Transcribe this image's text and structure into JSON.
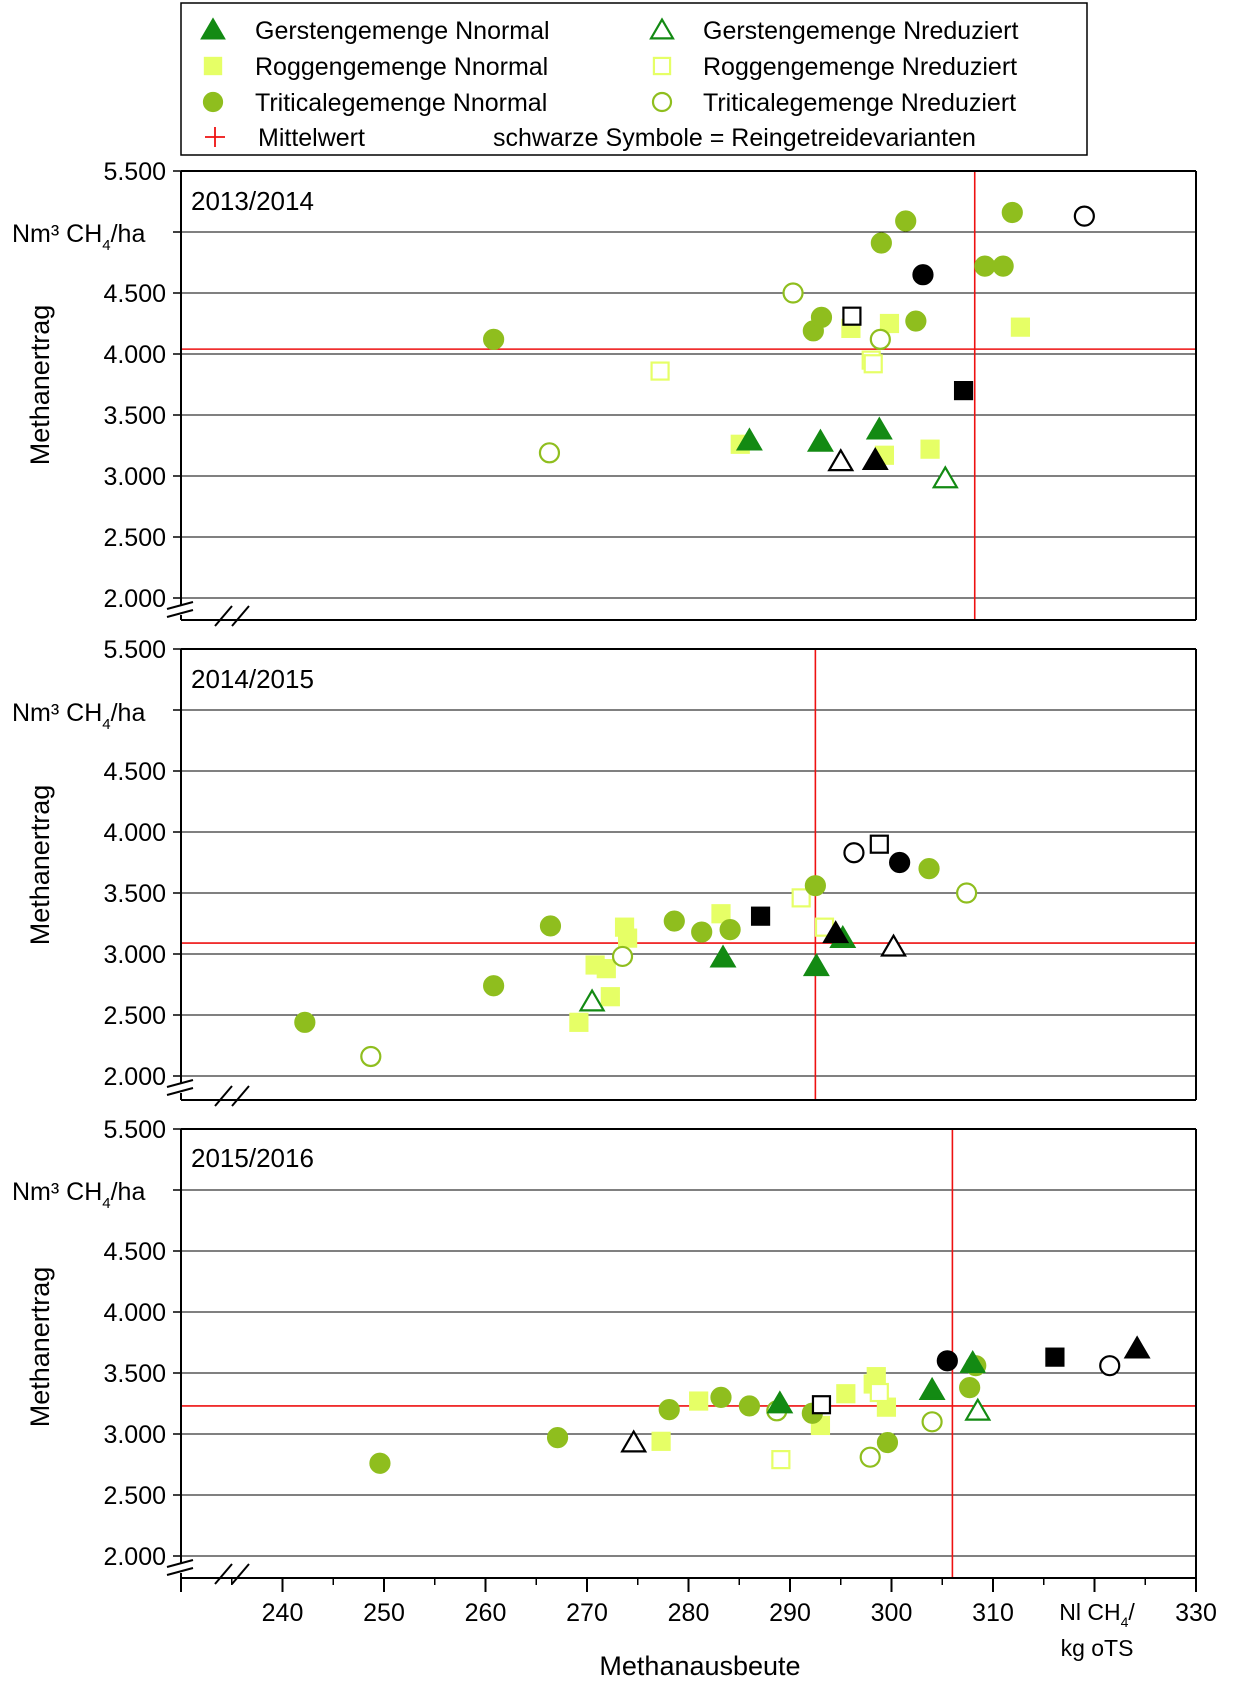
{
  "chart_data": {
    "type": "scatter",
    "xlabel": "Methanausbeute",
    "xunit": [
      "Nl CH",
      "4",
      "/",
      "kg oTS"
    ],
    "ylabel": "Methanertrag",
    "yunit": [
      "Nm³ CH",
      "4",
      "/ha"
    ],
    "xlim": [
      230,
      330
    ],
    "xticks": [
      240,
      250,
      260,
      270,
      280,
      290,
      300,
      310,
      330
    ],
    "xticklabels": [
      "240",
      "250",
      "260",
      "270",
      "280",
      "290",
      "300",
      "310",
      "330"
    ],
    "ylim": [
      2000,
      5500
    ],
    "yticks": [
      "2.000",
      "2.500",
      "3.000",
      "3.500",
      "4.000",
      "4.500",
      "",
      "5.500"
    ],
    "grid": true,
    "axis_break": true,
    "legend": {
      "position": "top",
      "entries": [
        {
          "key": "gn",
          "label": "Gerstengemenge Nnormal"
        },
        {
          "key": "gr",
          "label": "Gerstengemenge Nreduziert"
        },
        {
          "key": "rn",
          "label": "Roggengemenge Nnormal"
        },
        {
          "key": "rr",
          "label": "Roggengemenge Nreduziert"
        },
        {
          "key": "tn",
          "label": "Triticalegemenge Nnormal"
        },
        {
          "key": "tr",
          "label": "Triticalegemenge Nreduziert"
        },
        {
          "key": "mean",
          "label": "Mittelwert"
        }
      ],
      "note": "schwarze Symbole = Reingetreidevarianten"
    },
    "styles": {
      "gn": {
        "shape": "triangle",
        "filled": true,
        "color": "#138a13"
      },
      "gr": {
        "shape": "triangle",
        "filled": false,
        "color": "#138a13"
      },
      "rn": {
        "shape": "square",
        "filled": true,
        "color": "#e6ff66"
      },
      "rr": {
        "shape": "square",
        "filled": false,
        "color": "#e6ff66"
      },
      "tn": {
        "shape": "circle",
        "filled": true,
        "color": "#8fbe1e"
      },
      "tr": {
        "shape": "circle",
        "filled": false,
        "color": "#8fbe1e"
      },
      "mean": {
        "color": "#ee1111"
      },
      "pure": {
        "color": "#000000"
      }
    },
    "panels": [
      {
        "title": "2013/2014",
        "mean": [
          308.2,
          4040
        ],
        "series": {
          "gn": [
            [
              286,
              3290
            ],
            [
              293,
              3280
            ],
            [
              298.8,
              3380
            ]
          ],
          "gr": [
            [
              305.3,
              2980
            ]
          ],
          "rn": [
            [
              285.1,
              3260
            ],
            [
              296,
              4210
            ],
            [
              299.8,
              4250
            ],
            [
              299.3,
              3170
            ],
            [
              303.8,
              3220
            ],
            [
              312.7,
              4220
            ]
          ],
          "rr": [
            [
              277.2,
              3860
            ],
            [
              298,
              3950
            ],
            [
              298.2,
              3920
            ]
          ],
          "tn": [
            [
              260.8,
              4120
            ],
            [
              292.3,
              4190
            ],
            [
              293.1,
              4300
            ],
            [
              299,
              4910
            ],
            [
              301.4,
              5090
            ],
            [
              302.4,
              4270
            ],
            [
              309.2,
              4720
            ],
            [
              311,
              4720
            ],
            [
              311.9,
              5160
            ]
          ],
          "tr": [
            [
              266.3,
              3190
            ],
            [
              290.3,
              4500
            ],
            [
              298.9,
              4120
            ]
          ],
          "pure": [
            {
              "shape": "triangle",
              "filled": true,
              "pt": [
                298.4,
                3130
              ]
            },
            {
              "shape": "triangle",
              "filled": false,
              "pt": [
                295,
                3120
              ]
            },
            {
              "shape": "square",
              "filled": true,
              "pt": [
                307.1,
                3700
              ]
            },
            {
              "shape": "square",
              "filled": false,
              "pt": [
                296.1,
                4310
              ]
            },
            {
              "shape": "circle",
              "filled": true,
              "pt": [
                303.1,
                4650
              ]
            },
            {
              "shape": "circle",
              "filled": false,
              "pt": [
                319,
                5130
              ]
            }
          ]
        }
      },
      {
        "title": "2014/2015",
        "mean": [
          292.5,
          3090
        ],
        "series": {
          "gn": [
            [
              283.4,
              2970
            ],
            [
              292.6,
              2900
            ],
            [
              295.2,
              3130
            ]
          ],
          "gr": [
            [
              270.5,
              2610
            ]
          ],
          "rn": [
            [
              269.2,
              2440
            ],
            [
              270.8,
              2910
            ],
            [
              271.9,
              2880
            ],
            [
              272.3,
              2650
            ],
            [
              273.7,
              3220
            ],
            [
              274,
              3130
            ],
            [
              283.2,
              3330
            ]
          ],
          "rr": [
            [
              291.1,
              3460
            ],
            [
              293.4,
              3220
            ]
          ],
          "tn": [
            [
              242.2,
              2440
            ],
            [
              260.8,
              2740
            ],
            [
              266.4,
              3230
            ],
            [
              278.6,
              3270
            ],
            [
              281.3,
              3180
            ],
            [
              284.1,
              3200
            ],
            [
              292.5,
              3560
            ],
            [
              303.7,
              3700
            ]
          ],
          "tr": [
            [
              248.7,
              2160
            ],
            [
              273.5,
              2980
            ],
            [
              307.4,
              3500
            ]
          ],
          "pure": [
            {
              "shape": "triangle",
              "filled": true,
              "pt": [
                294.5,
                3170
              ]
            },
            {
              "shape": "triangle",
              "filled": false,
              "pt": [
                300.2,
                3060
              ]
            },
            {
              "shape": "square",
              "filled": true,
              "pt": [
                287.1,
                3310
              ]
            },
            {
              "shape": "square",
              "filled": false,
              "pt": [
                298.8,
                3900
              ]
            },
            {
              "shape": "circle",
              "filled": true,
              "pt": [
                300.8,
                3750
              ]
            },
            {
              "shape": "circle",
              "filled": false,
              "pt": [
                296.3,
                3830
              ]
            }
          ]
        }
      },
      {
        "title": "2015/2016",
        "mean": [
          306,
          3230
        ],
        "series": {
          "gn": [
            [
              289,
              3250
            ],
            [
              304,
              3360
            ],
            [
              308,
              3580
            ]
          ],
          "gr": [
            [
              308.5,
              3190
            ]
          ],
          "rn": [
            [
              277.3,
              2940
            ],
            [
              281,
              3270
            ],
            [
              293,
              3070
            ],
            [
              295.5,
              3330
            ],
            [
              298.2,
              3410
            ],
            [
              298.5,
              3470
            ],
            [
              299.5,
              3220
            ]
          ],
          "rr": [
            [
              289.1,
              2790
            ],
            [
              298.8,
              3340
            ]
          ],
          "tn": [
            [
              249.6,
              2760
            ],
            [
              267.1,
              2970
            ],
            [
              278.1,
              3200
            ],
            [
              283.2,
              3300
            ],
            [
              286,
              3230
            ],
            [
              292.2,
              3170
            ],
            [
              299.6,
              2930
            ],
            [
              307.7,
              3380
            ],
            [
              308.3,
              3560
            ]
          ],
          "tr": [
            [
              288.7,
              3190
            ],
            [
              297.9,
              2810
            ],
            [
              304,
              3100
            ]
          ],
          "pure": [
            {
              "shape": "triangle",
              "filled": true,
              "pt": [
                324.2,
                3700
              ]
            },
            {
              "shape": "triangle",
              "filled": false,
              "pt": [
                274.6,
                2930
              ]
            },
            {
              "shape": "square",
              "filled": true,
              "pt": [
                316.1,
                3630
              ]
            },
            {
              "shape": "square",
              "filled": false,
              "pt": [
                293.1,
                3240
              ]
            },
            {
              "shape": "circle",
              "filled": true,
              "pt": [
                305.5,
                3600
              ]
            },
            {
              "shape": "circle",
              "filled": false,
              "pt": [
                321.5,
                3560
              ]
            }
          ]
        }
      }
    ]
  }
}
